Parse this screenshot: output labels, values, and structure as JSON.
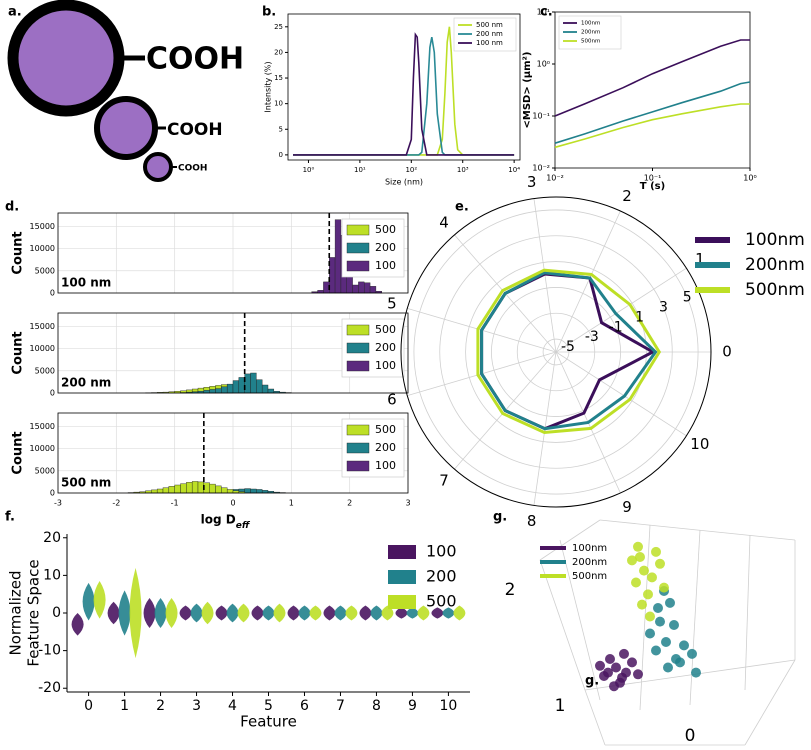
{
  "diagram": {
    "label": "a.",
    "groups": [
      "COOH",
      "COOH",
      "COOH"
    ]
  },
  "chart_data": [
    {
      "type": "line",
      "label": "b.",
      "xlabel": "Size (nm)",
      "ylabel": "Intensity (%)",
      "xlog": true,
      "xlim": [
        0.4,
        13000
      ],
      "ylim": [
        -1,
        27.5
      ],
      "xticks": [
        {
          "value": 1,
          "label": "10⁰"
        },
        {
          "value": 10,
          "label": "10¹"
        },
        {
          "value": 100,
          "label": "10²"
        },
        {
          "value": 1000,
          "label": "10³"
        },
        {
          "value": 10000,
          "label": "10⁴"
        }
      ],
      "yticks": [
        0,
        5,
        10,
        15,
        20,
        25
      ],
      "legend": "upper right",
      "x": [
        0.5,
        1,
        10,
        50,
        80,
        100,
        110,
        120,
        130,
        140,
        160,
        200,
        230,
        250,
        280,
        320,
        400,
        450,
        500,
        550,
        600,
        700,
        800,
        1000,
        10000
      ],
      "series": [
        {
          "name": "500 nm",
          "color": "#bddf26",
          "values": [
            0,
            0,
            0,
            0,
            0,
            0,
            0,
            0,
            0,
            0,
            0,
            0,
            0,
            0,
            0,
            0,
            3,
            12,
            22,
            25,
            20,
            6,
            1,
            0,
            0
          ]
        },
        {
          "name": "200 nm",
          "color": "#2a8a96",
          "values": [
            0,
            0,
            0,
            0,
            0,
            0,
            0,
            0,
            0,
            0,
            0.5,
            10,
            21,
            23,
            20,
            8,
            0.5,
            0,
            0,
            0,
            0,
            0,
            0,
            0,
            0
          ]
        },
        {
          "name": "100 nm",
          "color": "#3b0f5a",
          "values": [
            0,
            0,
            0,
            0,
            0,
            3,
            15,
            23.5,
            23,
            18,
            5,
            0,
            0,
            0,
            0,
            0,
            0,
            0,
            0,
            0,
            0,
            0,
            0,
            0,
            0
          ]
        }
      ]
    },
    {
      "type": "line",
      "label": "c.",
      "xlabel": "T (s)",
      "ylabel": "<MSD> (μm²)",
      "xlog": true,
      "ylog": true,
      "xlim": [
        0.01,
        1
      ],
      "ylim": [
        0.01,
        10
      ],
      "xticks": [
        {
          "value": 0.01,
          "label": "10⁻²"
        },
        {
          "value": 0.1,
          "label": "10⁻¹"
        },
        {
          "value": 1,
          "label": "10⁰"
        }
      ],
      "yticks": [
        {
          "value": 0.01,
          "label": "10⁻²"
        },
        {
          "value": 0.1,
          "label": "10⁻¹"
        },
        {
          "value": 1,
          "label": "10⁰"
        },
        {
          "value": 10,
          "label": "10¹"
        }
      ],
      "legend": "upper left",
      "x": [
        0.01,
        0.02,
        0.05,
        0.1,
        0.2,
        0.5,
        0.8,
        1.0
      ],
      "series": [
        {
          "name": "100nm",
          "color": "#3b0f5a",
          "values": [
            0.1,
            0.17,
            0.35,
            0.65,
            1.1,
            2.2,
            2.9,
            2.9
          ]
        },
        {
          "name": "200nm",
          "color": "#21818c",
          "values": [
            0.03,
            0.045,
            0.08,
            0.12,
            0.18,
            0.3,
            0.42,
            0.45
          ]
        },
        {
          "name": "500nm",
          "color": "#bddf26",
          "values": [
            0.025,
            0.036,
            0.06,
            0.085,
            0.11,
            0.15,
            0.17,
            0.17
          ]
        }
      ]
    },
    {
      "type": "histogram",
      "label": "d.",
      "ylabel": "Count",
      "xlabel": {
        "text": "log D",
        "subscript": "eff"
      },
      "xlim": [
        -3,
        3
      ],
      "ylim": [
        0,
        18000
      ],
      "xticks": [
        -3,
        -2,
        -1,
        0,
        1,
        2,
        3
      ],
      "yticks": [
        0,
        5000,
        10000,
        15000
      ],
      "grid": true,
      "legend": [
        {
          "name": "500",
          "color": "#bddf26"
        },
        {
          "name": "200",
          "color": "#21818c"
        },
        {
          "name": "100",
          "color": "#5b2a7e"
        }
      ],
      "subplots": [
        {
          "annotation": "100 nm",
          "mean": 1.65,
          "series": [
            {
              "color": "#5b2a7e",
              "bins": [
                1.35,
                1.45,
                1.55,
                1.65,
                1.75,
                1.85,
                1.95,
                2.05,
                2.15,
                2.25,
                2.35,
                2.45,
                2.55
              ],
              "values": [
                300,
                600,
                2500,
                8000,
                16500,
                13000,
                5000,
                1800,
                2500,
                2300,
                1500,
                400
              ]
            }
          ]
        },
        {
          "annotation": "200 nm",
          "mean": 0.2,
          "series": [
            {
              "color": "#bddf26",
              "bins": [
                -1.5,
                -1.4,
                -1.3,
                -1.2,
                -1.1,
                -1.0,
                -0.9,
                -0.8,
                -0.7,
                -0.6,
                -0.5,
                -0.4,
                -0.3,
                -0.2,
                -0.1,
                0.0
              ],
              "values": [
                50,
                100,
                150,
                200,
                300,
                400,
                500,
                700,
                900,
                1100,
                1300,
                1500,
                1700,
                1900,
                1800
              ]
            },
            {
              "color": "#21818c",
              "bins": [
                -0.9,
                -0.8,
                -0.7,
                -0.6,
                -0.5,
                -0.4,
                -0.3,
                -0.2,
                -0.1,
                0.0,
                0.1,
                0.2,
                0.3,
                0.4,
                0.5,
                0.6,
                0.7,
                0.8,
                0.9,
                1.0
              ],
              "values": [
                100,
                200,
                300,
                400,
                600,
                800,
                1000,
                1400,
                2000,
                2800,
                3500,
                4300,
                4500,
                3000,
                1800,
                900,
                400,
                200,
                100
              ]
            }
          ]
        },
        {
          "annotation": "500 nm",
          "mean": -0.5,
          "series": [
            {
              "color": "#21818c",
              "bins": [
                0.0,
                0.1,
                0.2,
                0.3,
                0.4,
                0.5,
                0.6,
                0.7,
                0.8,
                0.9
              ],
              "values": [
                800,
                900,
                1000,
                900,
                800,
                600,
                400,
                200,
                100
              ]
            },
            {
              "color": "#bddf26",
              "bins": [
                -1.8,
                -1.7,
                -1.6,
                -1.5,
                -1.4,
                -1.3,
                -1.2,
                -1.1,
                -1.0,
                -0.9,
                -0.8,
                -0.7,
                -0.6,
                -0.5,
                -0.4,
                -0.3,
                -0.2,
                -0.1,
                0.0,
                0.1,
                0.2
              ],
              "values": [
                100,
                200,
                300,
                500,
                700,
                900,
                1200,
                1500,
                1800,
                2100,
                2400,
                2600,
                2500,
                2300,
                2000,
                1600,
                1200,
                800,
                500,
                300
              ]
            }
          ]
        }
      ]
    },
    {
      "type": "radar",
      "label": "e.",
      "categories": [
        "0",
        "1",
        "2",
        "3",
        "4",
        "5",
        "6",
        "7",
        "8",
        "9",
        "10"
      ],
      "rlim": [
        -6,
        6
      ],
      "rticks": [
        -5,
        -3,
        -1,
        1,
        3,
        5
      ],
      "series": [
        {
          "name": "100nm",
          "color": "#3b0f5a",
          "values": [
            1.5,
            -1.8,
            0.3,
            0.1,
            0,
            0,
            0,
            0,
            0,
            -0.8,
            -2
          ]
        },
        {
          "name": "200nm",
          "color": "#21818c",
          "values": [
            1.7,
            -0.5,
            0.3,
            0.2,
            0,
            0,
            0,
            0,
            0,
            0,
            0.3
          ]
        },
        {
          "name": "500nm",
          "color": "#bddf26",
          "values": [
            2,
            0.8,
            0.6,
            0.4,
            0.3,
            0.3,
            0.3,
            0.3,
            0.3,
            0.5,
            0.8
          ]
        }
      ]
    },
    {
      "type": "violin",
      "label": "f.",
      "xlabel": "Feature",
      "ylabel": [
        "Normalized",
        "Feature Space"
      ],
      "x": [
        0,
        1,
        2,
        3,
        4,
        5,
        6,
        7,
        8,
        9,
        10
      ],
      "xlim": [
        -0.6,
        10.6
      ],
      "xticks": [
        0,
        1,
        2,
        3,
        4,
        5,
        6,
        7,
        8,
        9,
        10
      ],
      "ylim": [
        -21,
        21
      ],
      "yticks": [
        -20,
        -10,
        0,
        10,
        20
      ],
      "series": [
        {
          "name": "100",
          "color": "#4a1560",
          "values": [
            -3,
            0,
            0,
            0,
            0,
            0,
            0,
            0,
            0,
            0,
            0
          ],
          "spreads": [
            3,
            3,
            4,
            2,
            2,
            2,
            2,
            2,
            2,
            1.5,
            1.5
          ]
        },
        {
          "name": "200",
          "color": "#21818c",
          "values": [
            3,
            0,
            0,
            0,
            0,
            0,
            0,
            0,
            0,
            0,
            0
          ],
          "spreads": [
            5,
            6,
            4,
            2.5,
            2.5,
            2,
            2,
            2,
            2,
            1.5,
            1.5
          ]
        },
        {
          "name": "500",
          "color": "#bddf26",
          "values": [
            3.5,
            0,
            0,
            0,
            0,
            0,
            0,
            0,
            0,
            0,
            0
          ],
          "spreads": [
            5,
            12,
            4,
            3,
            2.5,
            2.5,
            2,
            2,
            2,
            2,
            2
          ]
        }
      ]
    },
    {
      "type": "scatter3d",
      "label": "g.",
      "inner_label": "g.",
      "axis_labels": [
        "0",
        "1",
        "2"
      ],
      "xlim": [
        0,
        10
      ],
      "ylim": [
        0,
        10
      ],
      "series": [
        {
          "name": "100nm",
          "color": "#4a1560",
          "x": [
            2.2,
            2.8,
            3.3,
            2.5,
            3.0,
            3.6,
            2.0,
            2.7,
            3.2,
            3.9,
            2.4,
            3.1
          ],
          "y": [
            2.0,
            2.5,
            2.2,
            3.0,
            1.6,
            2.8,
            2.6,
            1.4,
            3.3,
            2.1,
            2.2,
            1.9
          ]
        },
        {
          "name": "200nm",
          "color": "#21818c",
          "x": [
            4.8,
            5.3,
            5.8,
            5.0,
            6.2,
            5.5,
            4.5,
            6.0,
            5.2,
            6.6,
            5.7,
            4.9,
            5.4,
            6.8
          ],
          "y": [
            3.5,
            4.0,
            3.0,
            5.2,
            3.8,
            6.3,
            4.5,
            2.8,
            7.0,
            3.3,
            5.0,
            6.0,
            2.5,
            2.2
          ]
        },
        {
          "name": "500nm",
          "color": "#bddf26",
          "x": [
            3.8,
            4.2,
            4.6,
            4.0,
            5.0,
            4.4,
            3.6,
            4.8,
            5.2,
            4.1,
            4.5,
            3.9
          ],
          "y": [
            7.5,
            8.2,
            7.8,
            9.0,
            8.6,
            6.8,
            8.8,
            9.3,
            7.2,
            6.2,
            5.5,
            9.6
          ]
        }
      ]
    }
  ]
}
